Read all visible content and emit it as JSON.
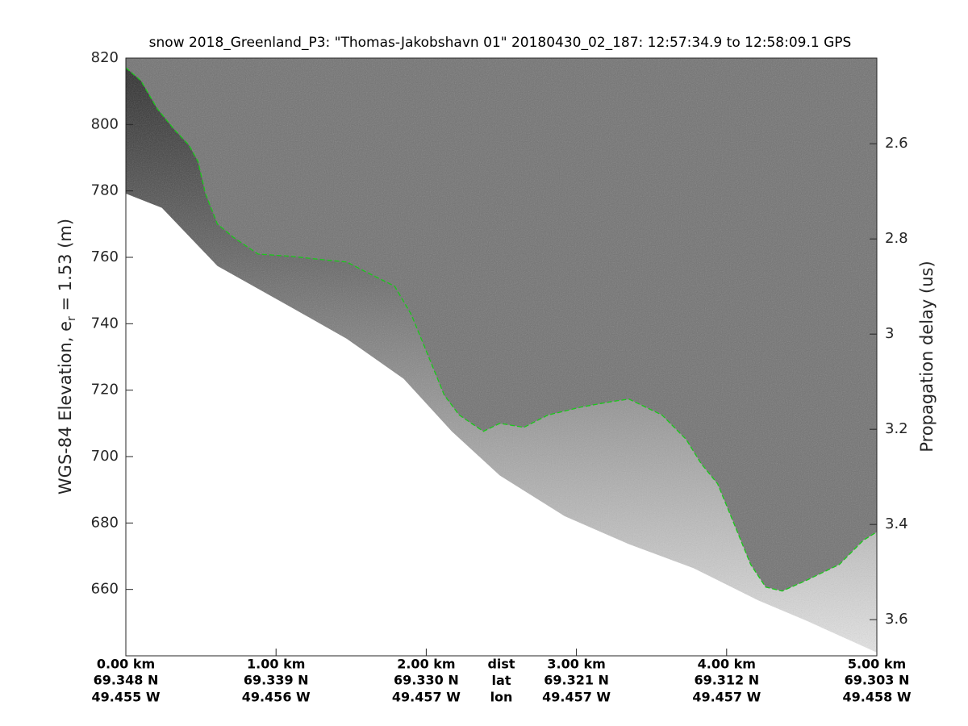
{
  "chart_data": {
    "type": "echogram",
    "title": "snow 2018_Greenland_P3: \"Thomas-Jakobshavn 01\"  20180430_02_187: 12:57:34.9 to 12:58:09.1 GPS",
    "ylabel_parts": [
      "WGS-84 Elevation, e",
      "r",
      " = 1.53 (m)"
    ],
    "y2label": "Propagation delay (us)",
    "xlim": [
      0,
      5
    ],
    "xticks": [
      {
        "value": 0,
        "label": "0.00 km"
      },
      {
        "value": 1,
        "label": "1.00 km"
      },
      {
        "value": 2,
        "label": "2.00 km"
      },
      {
        "value": 3,
        "label": "3.00 km"
      },
      {
        "value": 4,
        "label": "4.00 km"
      },
      {
        "value": 5,
        "label": "5.00 km"
      }
    ],
    "lat_labels": [
      "69.348 N",
      "69.339 N",
      "69.330 N",
      "69.321 N",
      "69.312 N",
      "69.303 N"
    ],
    "lon_labels": [
      "49.455 W",
      "49.456 W",
      "49.457 W",
      "49.457 W",
      "49.457 W",
      "49.458 W"
    ],
    "row_names": [
      "dist",
      "lat",
      "lon"
    ],
    "ylim": [
      640,
      820
    ],
    "yticks": [
      660,
      680,
      700,
      720,
      740,
      760,
      780,
      800,
      820
    ],
    "y2lim": [
      2.42,
      3.676
    ],
    "y2_reversed": true,
    "y2ticks": [
      2.6,
      2.8,
      3,
      3.2,
      3.4,
      3.6
    ],
    "background_color": "#727272",
    "surface": {
      "color": "#19c919",
      "x": [
        0,
        0.1,
        0.21,
        0.32,
        0.42,
        0.48,
        0.53,
        0.61,
        0.72,
        0.88,
        1.1,
        1.31,
        1.47,
        1.63,
        1.79,
        1.9,
        2.01,
        2.12,
        2.22,
        2.38,
        2.49,
        2.65,
        2.81,
        3.03,
        3.24,
        3.35,
        3.57,
        3.73,
        3.83,
        3.94,
        4.05,
        4.16,
        4.26,
        4.37,
        4.53,
        4.75,
        4.91,
        5.0
      ],
      "y": [
        817.1,
        813.2,
        804.7,
        798.6,
        793.8,
        788.9,
        779.2,
        770,
        765.9,
        761,
        760.3,
        759.3,
        758.6,
        754.9,
        751.3,
        742.8,
        730.7,
        718.5,
        712.5,
        707.6,
        710,
        708.8,
        712.5,
        714.9,
        716.6,
        717.3,
        712.5,
        705.2,
        697.9,
        691.8,
        679.7,
        667.5,
        660.7,
        659.5,
        662.7,
        667.5,
        674.8,
        677.3
      ]
    },
    "data_bottom": {
      "x": [
        0,
        0.24,
        0.61,
        1.04,
        1.47,
        1.85,
        2.17,
        2.49,
        2.92,
        3.35,
        3.78,
        4.21,
        4.53,
        5.0
      ],
      "y": [
        779.2,
        774.9,
        757.4,
        746.5,
        735.5,
        723.4,
        707.6,
        694.3,
        682.1,
        673.6,
        666.4,
        656.7,
        650.6,
        641
      ]
    }
  }
}
